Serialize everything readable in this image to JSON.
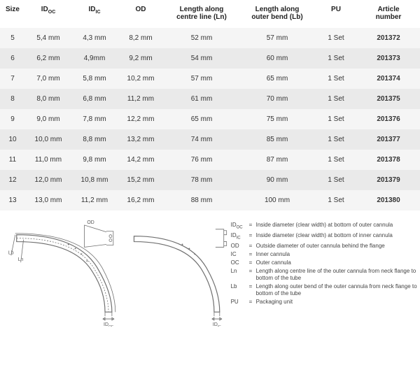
{
  "table": {
    "columns": [
      {
        "key": "size",
        "label": "Size",
        "class": "col-size"
      },
      {
        "key": "idoc",
        "label_html": "ID<sub>OC</sub>",
        "label": "ID",
        "sub": "OC",
        "class": "col-idoc"
      },
      {
        "key": "idic",
        "label_html": "ID<sub>IC</sub>",
        "label": "ID",
        "sub": "IC",
        "class": "col-idic"
      },
      {
        "key": "od",
        "label": "OD",
        "class": "col-od"
      },
      {
        "key": "ln",
        "label": "Length along\ncentre line (Ln)",
        "class": "col-ln"
      },
      {
        "key": "lb",
        "label": "Length along\nouter bend (Lb)",
        "class": "col-lb"
      },
      {
        "key": "pu",
        "label": "PU",
        "class": "col-pu"
      },
      {
        "key": "art",
        "label": "Article\nnumber",
        "class": "col-art"
      }
    ],
    "rows": [
      {
        "size": "5",
        "idoc": "5,4 mm",
        "idic": "4,3 mm",
        "od": "8,2 mm",
        "ln": "52 mm",
        "lb": "57 mm",
        "pu": "1 Set",
        "art": "201372"
      },
      {
        "size": "6",
        "idoc": "6,2 mm",
        "idic": "4,9mm",
        "od": "9,2 mm",
        "ln": "54 mm",
        "lb": "60 mm",
        "pu": "1 Set",
        "art": "201373"
      },
      {
        "size": "7",
        "idoc": "7,0 mm",
        "idic": "5,8 mm",
        "od": "10,2 mm",
        "ln": "57 mm",
        "lb": "65 mm",
        "pu": "1 Set",
        "art": "201374"
      },
      {
        "size": "8",
        "idoc": "8,0 mm",
        "idic": "6,8 mm",
        "od": "11,2 mm",
        "ln": "61 mm",
        "lb": "70 mm",
        "pu": "1 Set",
        "art": "201375"
      },
      {
        "size": "9",
        "idoc": "9,0 mm",
        "idic": "7,8 mm",
        "od": "12,2 mm",
        "ln": "65 mm",
        "lb": "75 mm",
        "pu": "1 Set",
        "art": "201376"
      },
      {
        "size": "10",
        "idoc": "10,0 mm",
        "idic": "8,8 mm",
        "od": "13,2 mm",
        "ln": "74 mm",
        "lb": "85 mm",
        "pu": "1 Set",
        "art": "201377"
      },
      {
        "size": "11",
        "idoc": "11,0 mm",
        "idic": "9,8 mm",
        "od": "14,2 mm",
        "ln": "76 mm",
        "lb": "87 mm",
        "pu": "1 Set",
        "art": "201378"
      },
      {
        "size": "12",
        "idoc": "12,0 mm",
        "idic": "10,8 mm",
        "od": "15,2 mm",
        "ln": "78 mm",
        "lb": "90 mm",
        "pu": "1 Set",
        "art": "201379"
      },
      {
        "size": "13",
        "idoc": "13,0 mm",
        "idic": "11,2 mm",
        "od": "16,2 mm",
        "ln": "88 mm",
        "lb": "100 mm",
        "pu": "1 Set",
        "art": "201380"
      }
    ],
    "row_odd_bg": "#f5f5f5",
    "row_even_bg": "#eaeaea",
    "header_color": "#222222",
    "cell_color": "#333333",
    "font_size_header": 10,
    "font_size_cell": 10
  },
  "legend": {
    "items": [
      {
        "key": "ID",
        "sub": "OC",
        "val": "Inside diameter (clear width) at bottom of outer cannula"
      },
      {
        "key": "ID",
        "sub": "IC",
        "val": "Inside diameter (clear width) at bottom of inner cannula"
      },
      {
        "key": "OD",
        "val": "Outside diameter of outer cannula behind the flange"
      },
      {
        "key": "IC",
        "val": "Inner cannula"
      },
      {
        "key": "OC",
        "val": "Outer cannula"
      },
      {
        "key": "Ln",
        "val": "Length along centre line of the outer cannula from neck flange to bottom of the tube"
      },
      {
        "key": "Lb",
        "val": "Length along outer bend of the outer cannula from neck flange to bottom of the tube"
      },
      {
        "key": "PU",
        "val": "Packaging unit"
      }
    ],
    "font_size": 8,
    "color": "#444444"
  },
  "diagram": {
    "labels": {
      "OD": "OD",
      "Lb": "Lb",
      "Ln": "Ln",
      "IDoc": "ID",
      "IDoc_sub": "OC",
      "IDic": "ID",
      "IDic_sub": "IC"
    },
    "stroke": "#6f6f6f"
  }
}
